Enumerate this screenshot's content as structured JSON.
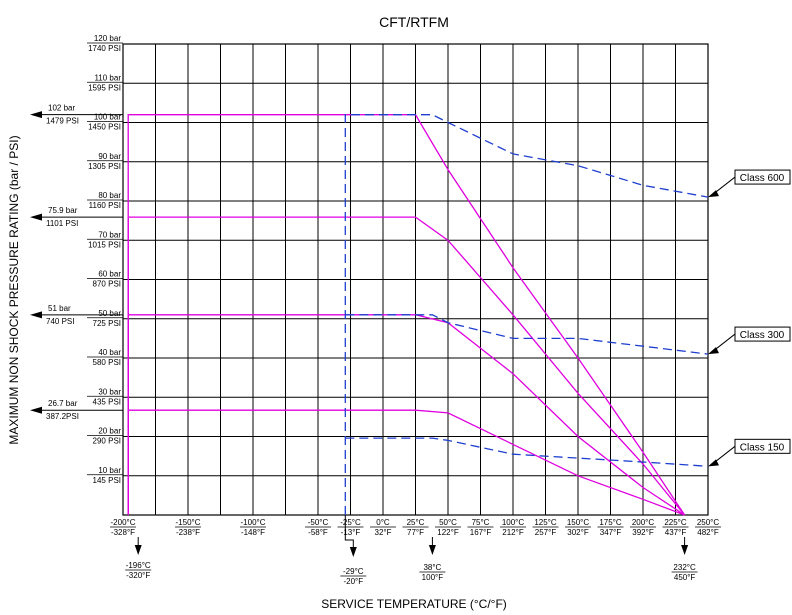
{
  "chart_data": {
    "type": "line",
    "title": "CFT/RTFM",
    "xlabel": "SERVICE TEMPERATURE (°C/°F)",
    "ylabel": "MAXIMUM NON SHOCK PRESSURE RATING (bar / PSI)",
    "xlim": [
      -200,
      250
    ],
    "ylim": [
      0,
      120
    ],
    "grid": true,
    "x_ticks": [
      {
        "c": "-200°C",
        "f": "-328°F"
      },
      {
        "c": "-150°C",
        "f": "-238°F"
      },
      {
        "c": "-100°C",
        "f": "-148°F"
      },
      {
        "c": "-50°C",
        "f": "-58°F"
      },
      {
        "c": "-25°C",
        "f": "-13°F"
      },
      {
        "c": "0°C",
        "f": "32°F"
      },
      {
        "c": "25°C",
        "f": "77°F"
      },
      {
        "c": "50°C",
        "f": "122°F"
      },
      {
        "c": "75°C",
        "f": "167°F"
      },
      {
        "c": "100°C",
        "f": "212°F"
      },
      {
        "c": "125°C",
        "f": "257°F"
      },
      {
        "c": "150°C",
        "f": "302°F"
      },
      {
        "c": "175°C",
        "f": "347°F"
      },
      {
        "c": "200°C",
        "f": "392°F"
      },
      {
        "c": "225°C",
        "f": "437°F"
      },
      {
        "c": "250°C",
        "f": "482°F"
      }
    ],
    "y_ticks": [
      {
        "bar": "10 bar",
        "psi": "145 PSI"
      },
      {
        "bar": "20 bar",
        "psi": "290 PSI"
      },
      {
        "bar": "30 bar",
        "psi": "435 PSI"
      },
      {
        "bar": "40 bar",
        "psi": "580 PSI"
      },
      {
        "bar": "50 bar",
        "psi": "725 PSI"
      },
      {
        "bar": "60 bar",
        "psi": "870 PSI"
      },
      {
        "bar": "70 bar",
        "psi": "1015 PSI"
      },
      {
        "bar": "80 bar",
        "psi": "1160 PSI"
      },
      {
        "bar": "90 bar",
        "psi": "1305 PSI"
      },
      {
        "bar": "100 bar",
        "psi": "1450 PSI"
      },
      {
        "bar": "110 bar",
        "psi": "1595 PSI"
      },
      {
        "bar": "120 bar",
        "psi": "1740 PSI"
      }
    ],
    "series": [
      {
        "style": "solid",
        "color": "#e000e0",
        "x": [
          -196,
          -196,
          25,
          50,
          100,
          150,
          200,
          232
        ],
        "y": [
          0,
          102,
          102,
          88,
          63,
          40,
          16,
          0
        ]
      },
      {
        "style": "solid",
        "color": "#e000e0",
        "x": [
          -196,
          -196,
          25,
          50,
          100,
          150,
          200,
          232
        ],
        "y": [
          0,
          75.9,
          75.9,
          70,
          51,
          31,
          13,
          0
        ]
      },
      {
        "style": "solid",
        "color": "#e000e0",
        "x": [
          -196,
          -196,
          25,
          50,
          100,
          150,
          200,
          232
        ],
        "y": [
          0,
          51,
          51,
          49,
          36,
          20,
          7,
          0
        ]
      },
      {
        "style": "solid",
        "color": "#e000e0",
        "x": [
          -196,
          -196,
          25,
          50,
          100,
          150,
          200,
          232
        ],
        "y": [
          0,
          26.7,
          26.7,
          26,
          18,
          10,
          4,
          0
        ]
      },
      {
        "name": "Class 600",
        "style": "dashed",
        "color": "#1f3fd0",
        "x": [
          -29,
          -29,
          38,
          50,
          100,
          150,
          200,
          250
        ],
        "y": [
          0,
          102,
          102,
          100,
          92,
          89,
          84,
          81
        ]
      },
      {
        "name": "Class 300",
        "style": "dashed",
        "color": "#1f3fd0",
        "x": [
          -29,
          38,
          50,
          100,
          150,
          200,
          250
        ],
        "y": [
          51,
          51,
          49,
          45,
          45,
          43,
          41
        ]
      },
      {
        "name": "Class 150",
        "style": "dashed",
        "color": "#1f3fd0",
        "x": [
          -29,
          38,
          50,
          100,
          150,
          200,
          250
        ],
        "y": [
          19.6,
          19.6,
          19,
          15.5,
          14.5,
          13.5,
          12.4
        ]
      }
    ],
    "left_callouts": [
      {
        "bar": "102 bar",
        "psi": "1479 PSI",
        "value": 102
      },
      {
        "bar": "75.9 bar",
        "psi": "1101 PSI",
        "value": 75.9
      },
      {
        "bar": "51 bar",
        "psi": "740 PSI",
        "value": 51
      },
      {
        "bar": "26.7 bar",
        "psi": "387.2PSI",
        "value": 26.7
      }
    ],
    "bottom_callouts": [
      {
        "c": "-196°C",
        "f": "-320°F",
        "value": -196
      },
      {
        "c": "-29°C",
        "f": "-20°F",
        "value": -29
      },
      {
        "c": "38°C",
        "f": "100°F",
        "value": 38
      },
      {
        "c": "232°C",
        "f": "450°F",
        "value": 232
      }
    ],
    "class_labels": [
      {
        "label": "Class 600",
        "value": 81
      },
      {
        "label": "Class 300",
        "value": 41
      },
      {
        "label": "Class 150",
        "value": 12.4
      }
    ]
  }
}
